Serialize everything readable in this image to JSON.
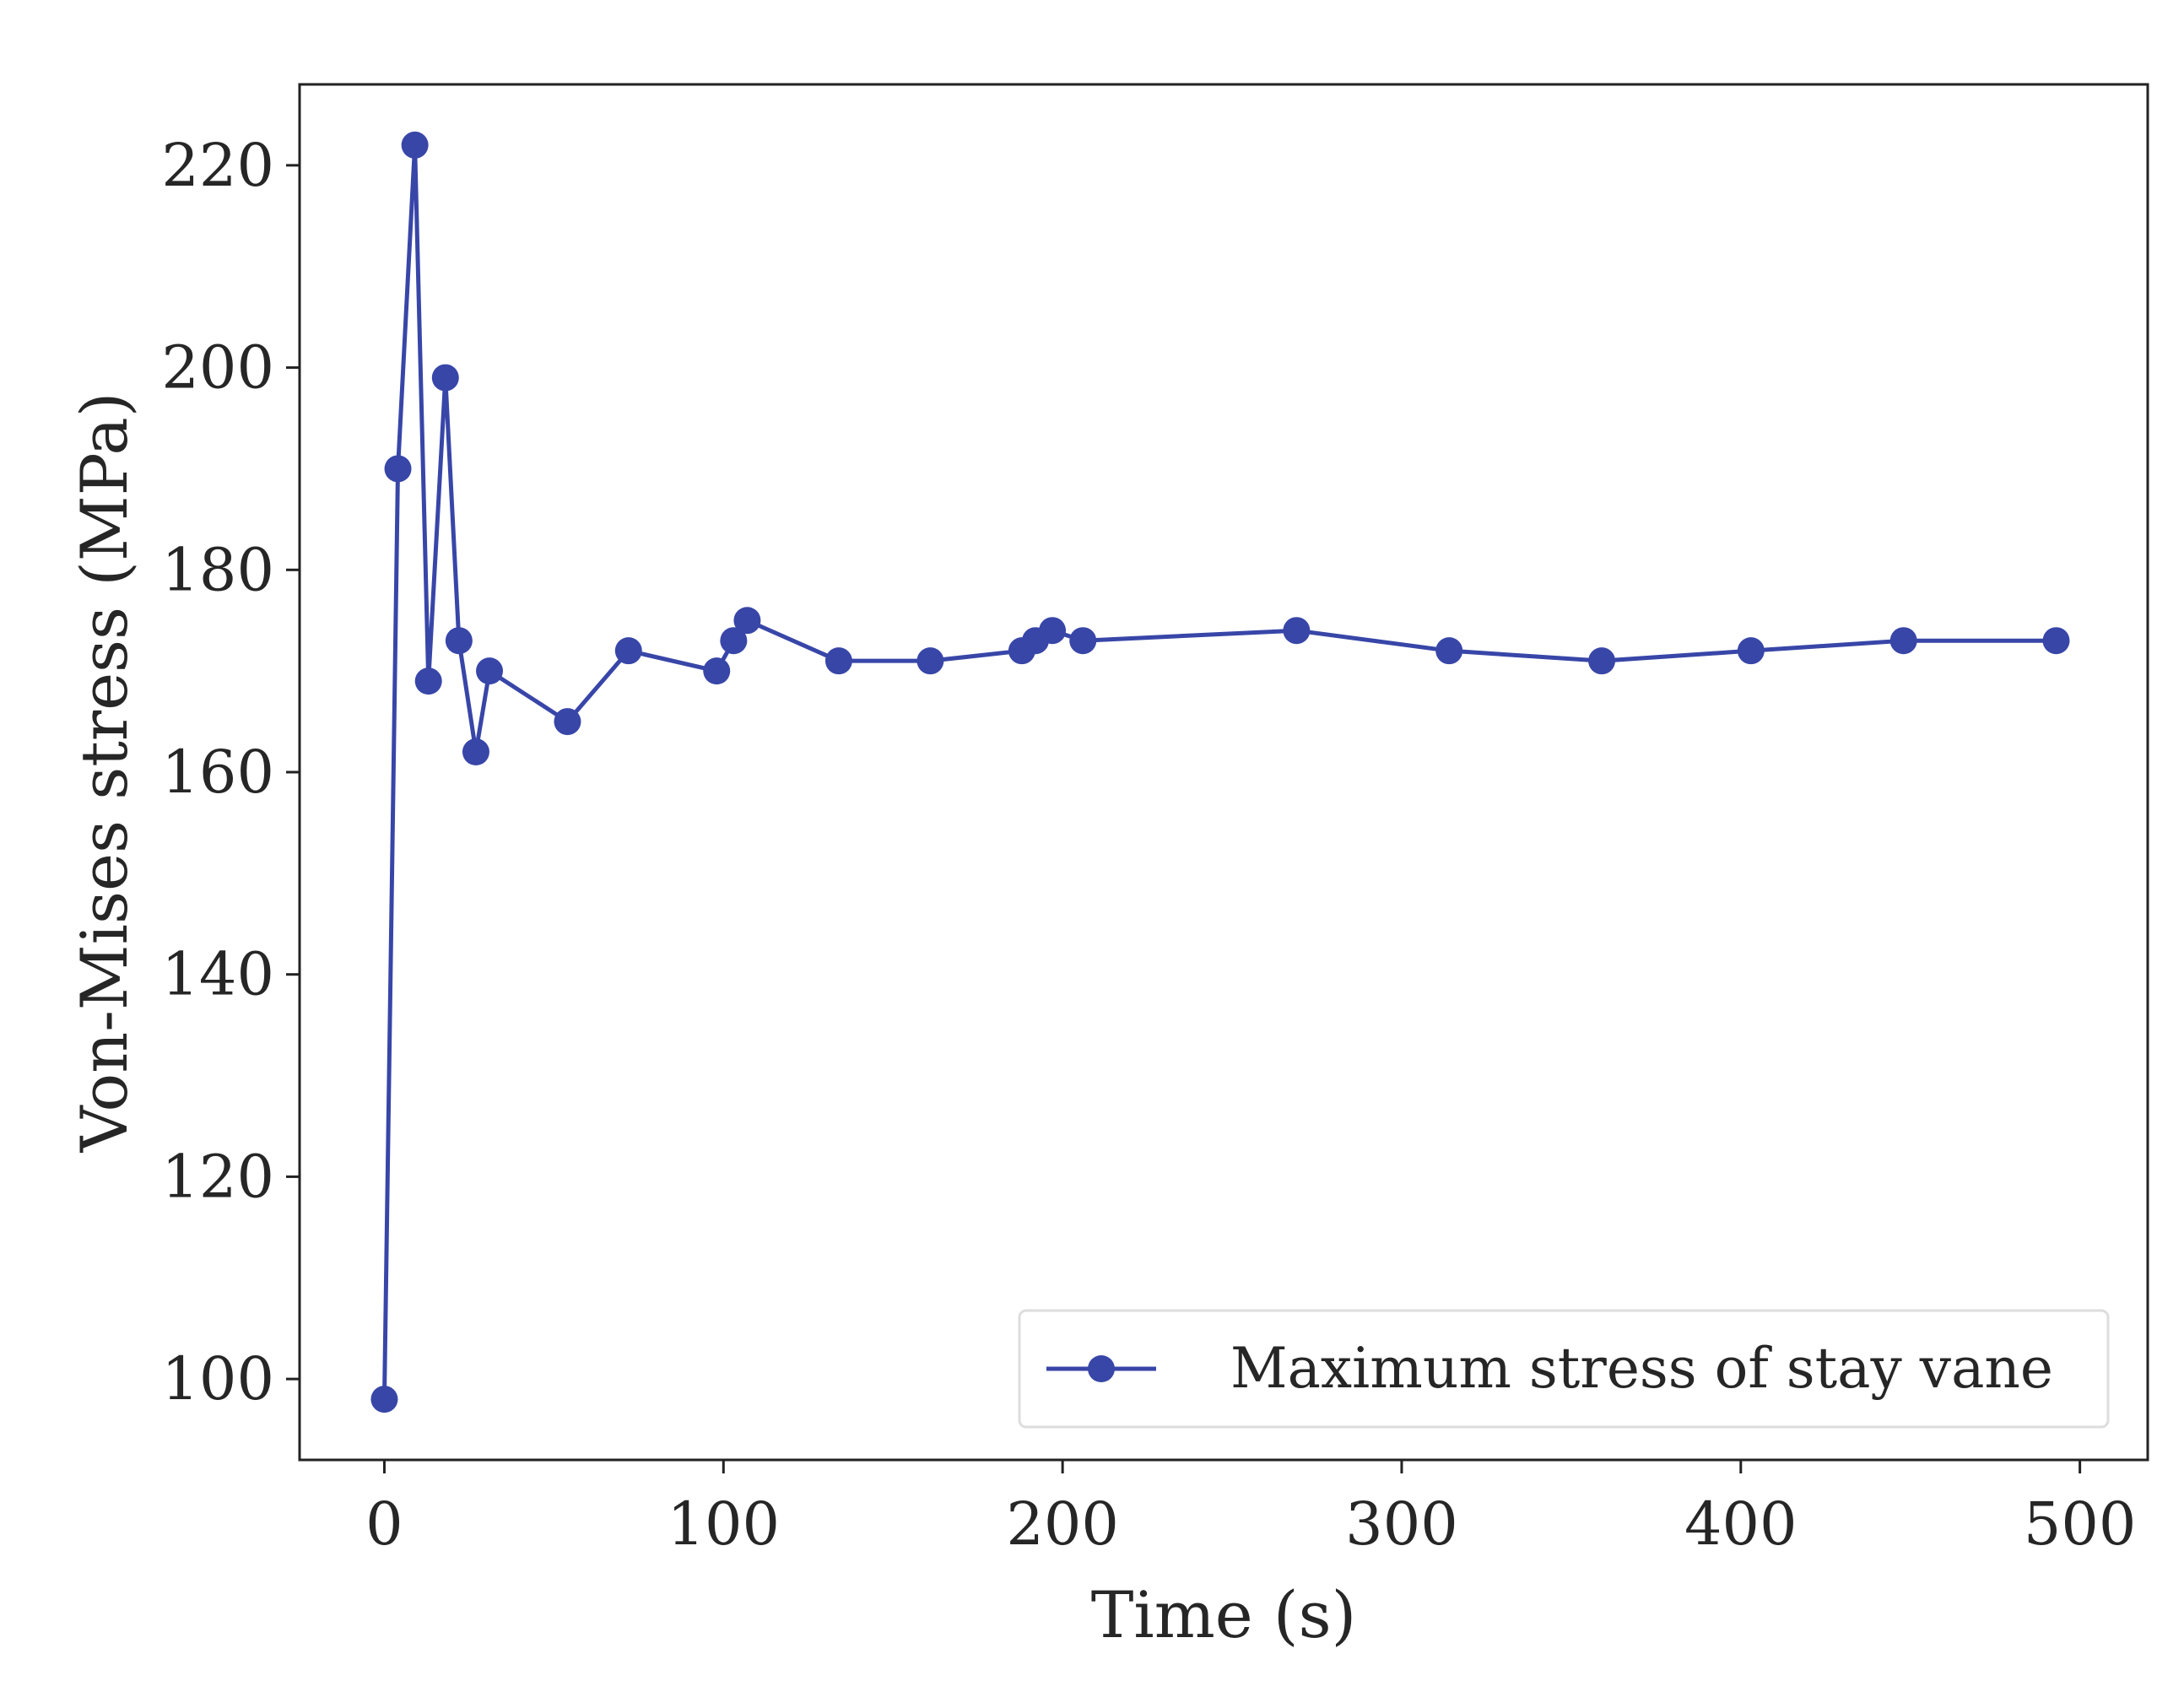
{
  "chart_data": {
    "type": "line",
    "title": "",
    "xlabel": "Time (s)",
    "ylabel": "Von-Mises stress (MPa)",
    "xlim": [
      -25,
      520
    ],
    "ylim": [
      92,
      228
    ],
    "xticks": [
      0,
      100,
      200,
      300,
      400,
      500
    ],
    "yticks": [
      100,
      120,
      140,
      160,
      180,
      200,
      220
    ],
    "grid": false,
    "legend_position": "lower-right",
    "series": [
      {
        "name": "Maximum stress of stay vane",
        "color": "#3846a8",
        "marker": "circle",
        "x": [
          0,
          4,
          9,
          13,
          18,
          22,
          27,
          31,
          54,
          72,
          98,
          103,
          107,
          134,
          161,
          188,
          192,
          197,
          206,
          269,
          314,
          359,
          403,
          448,
          493
        ],
        "y": [
          98,
          190,
          222,
          169,
          199,
          173,
          162,
          170,
          165,
          172,
          170,
          173,
          175,
          171,
          171,
          172,
          173,
          174,
          173,
          174,
          172,
          171,
          172,
          173,
          173
        ]
      }
    ]
  }
}
